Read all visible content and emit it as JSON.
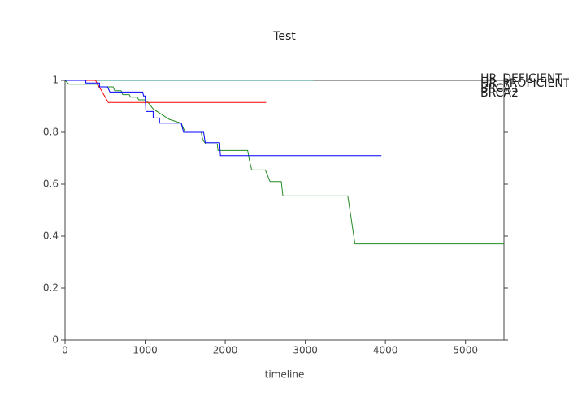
{
  "chart_data": {
    "type": "line",
    "title": "Test",
    "x_label": "timeline",
    "xlim": [
      0,
      5480
    ],
    "ylim": [
      0,
      1
    ],
    "xticks": [
      0,
      1000,
      2000,
      3000,
      4000,
      5000
    ],
    "yticks": [
      0,
      0.2,
      0.4,
      0.6,
      0.8,
      1
    ],
    "grid": false,
    "legend": "right",
    "series": [
      {
        "name": "HR_DEFICIENT",
        "color": "#1f8f8f",
        "x": [
          0,
          3100
        ],
        "values": [
          1,
          1
        ]
      },
      {
        "name": "HR_PROFICIENT",
        "color": "#228b22",
        "x": [
          0,
          50,
          400,
          420,
          600,
          620,
          700,
          720,
          800,
          820,
          900,
          920,
          1000,
          1050,
          1100,
          1200,
          1300,
          1450,
          1500,
          1700,
          1720,
          1760,
          1900,
          1910,
          2280,
          2300,
          2330,
          2500,
          2560,
          2700,
          2720,
          3530,
          3620,
          5480
        ],
        "values": [
          1,
          0.985,
          0.985,
          0.975,
          0.975,
          0.96,
          0.96,
          0.945,
          0.945,
          0.935,
          0.935,
          0.925,
          0.925,
          0.91,
          0.89,
          0.87,
          0.85,
          0.835,
          0.8,
          0.8,
          0.77,
          0.755,
          0.755,
          0.73,
          0.73,
          0.695,
          0.655,
          0.655,
          0.61,
          0.61,
          0.555,
          0.555,
          0.37,
          0.37
        ]
      },
      {
        "name": "BRCA1",
        "color": "#ff0000",
        "x": [
          0,
          380,
          540,
          2510
        ],
        "values": [
          1,
          1,
          0.915,
          0.915
        ]
      },
      {
        "name": "BRCA2",
        "color": "#0000ff",
        "x": [
          0,
          260,
          260,
          430,
          430,
          530,
          560,
          970,
          980,
          1000,
          1010,
          1100,
          1100,
          1180,
          1180,
          1450,
          1480,
          1730,
          1750,
          1930,
          1940,
          3950
        ],
        "values": [
          1,
          1,
          0.99,
          0.99,
          0.975,
          0.975,
          0.955,
          0.955,
          0.94,
          0.94,
          0.88,
          0.88,
          0.855,
          0.855,
          0.835,
          0.835,
          0.8,
          0.8,
          0.76,
          0.76,
          0.71,
          0.71
        ]
      }
    ]
  }
}
